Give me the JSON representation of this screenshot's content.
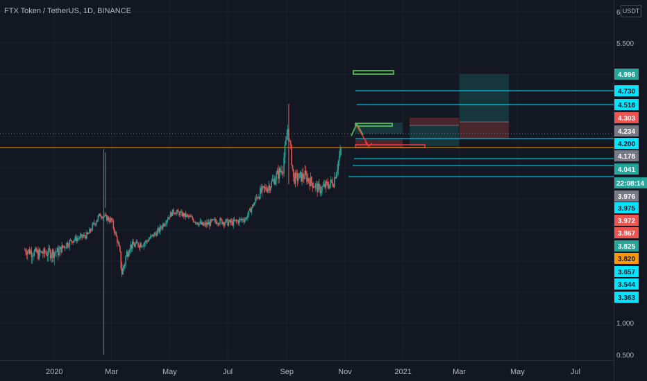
{
  "title": "FTX Token / TetherUS, 1D, BINANCE",
  "unit_label": "USDT",
  "colors": {
    "background": "#131722",
    "up": "#26a69a",
    "down": "#ef5350",
    "cyan": "#00e5ff",
    "orange": "#ff9800",
    "green_line": "#4caf50",
    "red_line": "#f23645"
  },
  "chart_data": {
    "type": "candlestick",
    "y_scale": "log",
    "ylim": [
      0.47,
      6.2
    ],
    "xlim": [
      "2019-11-05",
      "2021-08-10"
    ],
    "y_tick_labels": [
      {
        "value": 6,
        "label": "6"
      },
      {
        "value": 5.5,
        "label": "5.500"
      },
      {
        "value": 1,
        "label": "1.000"
      },
      {
        "value": 0.5,
        "label": "0.500"
      }
    ],
    "x_tick_labels": [
      {
        "date": "2020-01-01",
        "label": "2020"
      },
      {
        "date": "2020-03-01",
        "label": "Mar"
      },
      {
        "date": "2020-05-01",
        "label": "May"
      },
      {
        "date": "2020-07-01",
        "label": "Jul"
      },
      {
        "date": "2020-09-01",
        "label": "Sep"
      },
      {
        "date": "2020-11-01",
        "label": "Nov"
      },
      {
        "date": "2021-01-01",
        "label": "2021"
      },
      {
        "date": "2021-03-01",
        "label": "Mar"
      },
      {
        "date": "2021-05-01",
        "label": "May"
      },
      {
        "date": "2021-07-01",
        "label": "Jul"
      }
    ],
    "price_path": [
      [
        "2019-12-01",
        1.9
      ],
      [
        "2019-12-15",
        1.86
      ],
      [
        "2020-01-05",
        1.88
      ],
      [
        "2020-01-20",
        2.05
      ],
      [
        "2020-02-05",
        2.15
      ],
      [
        "2020-02-18",
        2.6
      ],
      [
        "2020-03-01",
        2.45
      ],
      [
        "2020-03-12",
        1.7
      ],
      [
        "2020-03-20",
        1.95
      ],
      [
        "2020-04-05",
        2.0
      ],
      [
        "2020-04-20",
        2.25
      ],
      [
        "2020-05-05",
        2.7
      ],
      [
        "2020-05-20",
        2.55
      ],
      [
        "2020-06-05",
        2.35
      ],
      [
        "2020-06-20",
        2.45
      ],
      [
        "2020-07-05",
        2.4
      ],
      [
        "2020-07-20",
        2.5
      ],
      [
        "2020-08-01",
        3.1
      ],
      [
        "2020-08-15",
        3.3
      ],
      [
        "2020-08-28",
        3.6
      ],
      [
        "2020-09-02",
        4.4
      ],
      [
        "2020-09-08",
        3.4
      ],
      [
        "2020-09-20",
        3.45
      ],
      [
        "2020-10-05",
        3.2
      ],
      [
        "2020-10-20",
        3.35
      ],
      [
        "2020-10-28",
        3.9
      ]
    ],
    "wicks": [
      {
        "date": "2020-02-22",
        "high": 3.9,
        "low": 0.5
      },
      {
        "date": "2020-09-03",
        "high": 5.15,
        "low": 3.3
      }
    ],
    "horizontal_levels": [
      {
        "value": 4.996,
        "label": "4.996",
        "color": "#26a69a"
      },
      {
        "value": 4.73,
        "label": "4.730",
        "color": "#00e5ff"
      },
      {
        "value": 4.518,
        "label": "4.518",
        "color": "#00e5ff"
      },
      {
        "value": 4.303,
        "label": "4.303",
        "color": "#ef5350"
      },
      {
        "value": 4.234,
        "label": "4.234",
        "color": "#787b86"
      },
      {
        "value": 4.2,
        "label": "4.200",
        "color": "#00e5ff"
      },
      {
        "value": 4.178,
        "label": "4.178",
        "color": "#787b86"
      },
      {
        "value": 4.041,
        "label": "4.041",
        "color": "#26a69a"
      }
    ],
    "countdown_label": "22:08:14",
    "price_badges": [
      {
        "label": "3.976",
        "color": "#787b86"
      },
      {
        "label": "3.975",
        "color": "#00e5ff"
      },
      {
        "label": "3.972",
        "color": "#ef5350"
      },
      {
        "label": "3.867",
        "color": "#ef5350"
      },
      {
        "label": "3.825",
        "color": "#26a69a"
      },
      {
        "label": "3.820",
        "color": "#ff9800"
      },
      {
        "label": "3.657",
        "color": "#00e5ff"
      },
      {
        "label": "3.544",
        "color": "#00e5ff"
      },
      {
        "label": "3.363",
        "color": "#00e5ff"
      }
    ],
    "drawings": [
      {
        "type": "hline",
        "value": 4.178,
        "color": "#ff9800",
        "from": "2019-11-05",
        "to": "2021-08-10"
      },
      {
        "type": "hline",
        "value": 4.234,
        "color": "#787b86",
        "from": "2019-11-05",
        "to": "2021-08-10",
        "style": "dotted"
      },
      {
        "type": "ray",
        "value": 4.73,
        "color": "#00e5ff",
        "from": "2020-11-01"
      },
      {
        "type": "ray",
        "value": 4.518,
        "color": "#00e5ff",
        "from": "2020-11-02"
      },
      {
        "type": "ray",
        "value": 4.2,
        "color": "#00e5ff",
        "from": "2020-11-01"
      },
      {
        "type": "ray",
        "value": 4.11,
        "color": "#00e5ff",
        "from": "2020-10-30"
      },
      {
        "type": "ray",
        "value": 4.041,
        "color": "#00e5ff",
        "from": "2020-10-29"
      },
      {
        "type": "ray",
        "value": 3.93,
        "color": "#00e5ff",
        "from": "2020-10-25"
      }
    ],
    "position_boxes": [
      {
        "kind": "profit",
        "from": "2020-11-01",
        "to": "2020-12-15",
        "top": 4.3,
        "bottom": 4.234
      },
      {
        "kind": "loss",
        "from": "2020-11-01",
        "to": "2020-12-15",
        "top": 4.178,
        "bottom": 4.15
      },
      {
        "kind": "profit",
        "from": "2020-12-25",
        "to": "2021-02-20",
        "top": 4.28,
        "bottom": 4.2
      },
      {
        "kind": "loss",
        "from": "2020-12-25",
        "to": "2021-02-20",
        "top": 4.4,
        "bottom": 4.28
      },
      {
        "kind": "profit",
        "from": "2021-02-20",
        "to": "2021-04-10",
        "top": 4.996,
        "bottom": 4.303
      },
      {
        "kind": "loss",
        "from": "2021-02-20",
        "to": "2021-04-10",
        "top": 4.303,
        "bottom": 4.2
      }
    ],
    "green_rects": [
      {
        "from": "2020-11-01",
        "to": "2020-12-20",
        "top": 4.996,
        "bottom": 4.96
      },
      {
        "from": "2020-11-01",
        "to": "2020-12-20",
        "top": 4.28,
        "bottom": 4.262
      }
    ],
    "arrows": [
      {
        "color": "#4caf50",
        "from": [
          "2020-10-28",
          3.95
        ],
        "to": [
          "2020-11-02",
          4.275
        ]
      },
      {
        "color": "#f23645",
        "from": [
          "2020-11-02",
          4.275
        ],
        "to": [
          "2020-11-12",
          4.175
        ]
      }
    ]
  }
}
